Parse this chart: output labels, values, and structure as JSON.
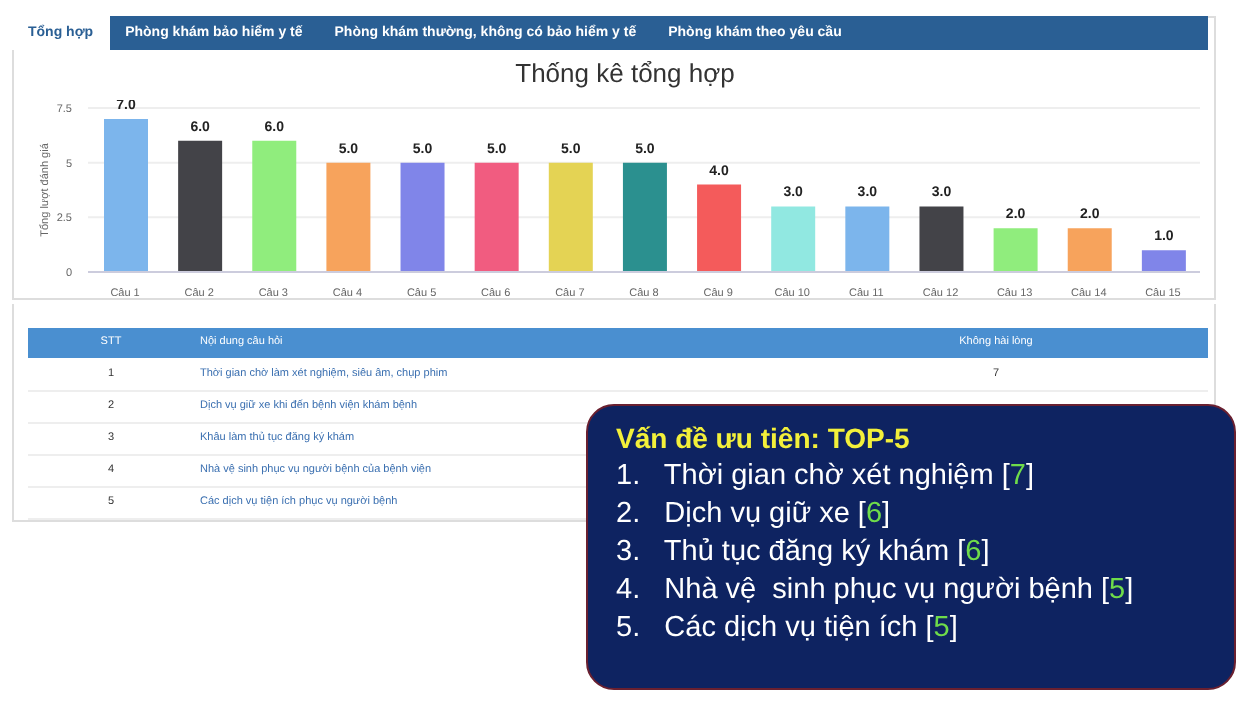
{
  "chart_data": {
    "type": "bar",
    "title": "Thống kê tổng hợp",
    "ylabel": "Tổng lượt đánh giá",
    "categories": [
      "Câu 1",
      "Câu 2",
      "Câu 3",
      "Câu 4",
      "Câu 5",
      "Câu 6",
      "Câu 7",
      "Câu 8",
      "Câu 9",
      "Câu 10",
      "Câu 11",
      "Câu 12",
      "Câu 13",
      "Câu 14",
      "Câu 15"
    ],
    "values": [
      7,
      6,
      6,
      5,
      5,
      5,
      5,
      5,
      4,
      3,
      3,
      3,
      2,
      2,
      1
    ],
    "value_labels": [
      "7.0",
      "6.0",
      "6.0",
      "5.0",
      "5.0",
      "5.0",
      "5.0",
      "5.0",
      "4.0",
      "3.0",
      "3.0",
      "3.0",
      "2.0",
      "2.0",
      "1.0"
    ],
    "colors": [
      "#7cb5ec",
      "#434348",
      "#90ed7d",
      "#f7a35c",
      "#8085e9",
      "#f15c80",
      "#e4d354",
      "#2b908f",
      "#f45b5b",
      "#91e8e1",
      "#7cb5ec",
      "#434348",
      "#90ed7d",
      "#f7a35c",
      "#8085e9"
    ],
    "ylim": [
      0,
      7.5
    ],
    "yticks": [
      0,
      2.5,
      5,
      7.5
    ],
    "grid": "y",
    "legend": false,
    "annotations": [
      "Tổng hợp",
      "Phòng khám bảo hiểm y tế",
      "Phòng khám thường, không có bảo hiểm y tế",
      "Phòng khám theo yêu cầu",
      "STT",
      "Nội dung câu hỏi",
      "Không hài lòng",
      "1",
      "Thời gian chờ làm xét nghiệm, siêu âm, chụp phim",
      "7",
      "2",
      "Dịch vụ giữ xe khi đến bệnh viện khám bệnh",
      "3",
      "Khâu làm thủ tục đăng ký khám",
      "4",
      "Nhà vệ sinh phục vụ người bệnh của bệnh viện",
      "5",
      "Các dịch vụ tiện ích phục vụ người bệnh",
      "Vấn đề ưu tiên: TOP-5",
      "1.   Thời gian chờ xét nghiệm [7]",
      "2.   Dịch vụ giữ xe [6]",
      "3.   Thủ tục đăng ký khám [6]",
      "4.   Nhà vệ  sinh phục vụ người bệnh [5]",
      "5.   Các dịch vụ tiện ích [5]"
    ]
  }
}
